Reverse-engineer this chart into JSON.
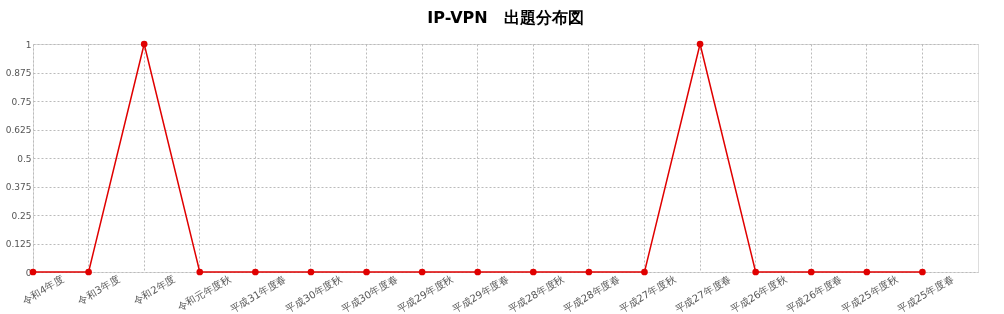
{
  "chart_data": {
    "type": "line",
    "title": "IP-VPN　出題分布図",
    "categories": [
      "令和4年度",
      "令和3年度",
      "令和2年度",
      "令和元年度秋",
      "平成31年度春",
      "平成30年度秋",
      "平成30年度春",
      "平成29年度秋",
      "平成29年度春",
      "平成28年度秋",
      "平成28年度春",
      "平成27年度秋",
      "平成27年度春",
      "平成26年度秋",
      "平成26年度春",
      "平成25年度秋",
      "平成25年度春"
    ],
    "series": [
      {
        "color": "#e00000",
        "values": [
          0,
          0,
          1,
          0,
          0,
          0,
          0,
          0,
          0,
          0,
          0,
          0,
          1,
          0,
          0,
          0,
          0
        ]
      }
    ],
    "ylim": [
      0,
      1
    ],
    "yticks": [
      0,
      0.125,
      0.25,
      0.375,
      0.5,
      0.625,
      0.75,
      0.875,
      1
    ],
    "grid": true,
    "marker": "circle",
    "line_style": "solid"
  }
}
